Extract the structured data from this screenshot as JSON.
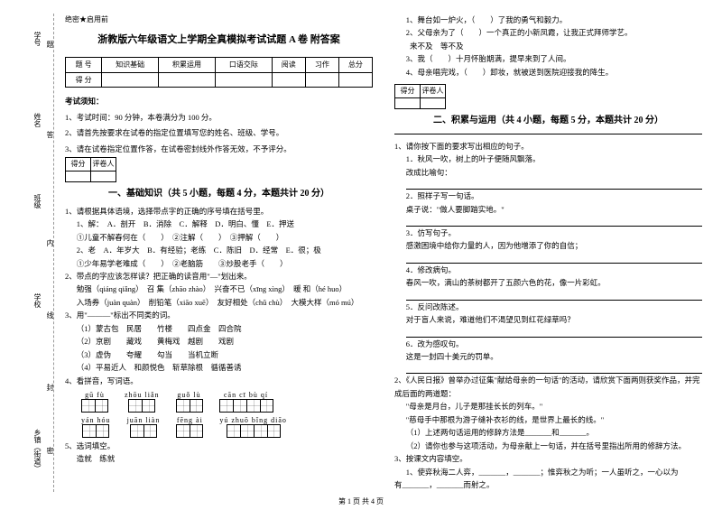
{
  "secret": "绝密★启用前",
  "title": "浙教版六年级语文上学期全真模拟考试试题 A 卷 附答案",
  "spine": {
    "l1": "学号",
    "l2": "姓名",
    "l3": "班级",
    "l4": "学校",
    "l5": "乡镇（街道）",
    "d1": "题",
    "d2": "答",
    "d3": "内",
    "d4": "线",
    "d5": "封",
    "d6": "密"
  },
  "score_header": [
    "题 号",
    "知识基础",
    "积累运用",
    "口语交际",
    "阅读",
    "习作",
    "总分"
  ],
  "score_row": "得 分",
  "notice_title": "考试须知：",
  "notice": [
    "1、考试时间：90 分钟，本卷满分为 100 分。",
    "2、请首先按要求在试卷的指定位置填写您的姓名、班级、学号。",
    "3、请在试卷指定位置作答，在试卷密封线外作答无效，不予评分。"
  ],
  "dp": {
    "a": "得分",
    "b": "评卷人"
  },
  "sec1": "一、基础知识（共 5 小题，每题 4 分，本题共计 20 分）",
  "q1": {
    "stem": "1、请根据具体语境，选择带点字的正确的序号填在括号里。",
    "l1": "1、解：　A．剖开　B．消除　C．解释　D．明白、懂　E．押送",
    "l2": "①儿童不解春何在（　　）　②注解（　　）　③押解（　　）",
    "l3": "2、老　A．年岁大　B．有经验；老练　C．陈旧　D．经常　E．很；极",
    "l4": "①少年易学老难成（　　）　②老脑筋　　③炒股老手（　　）"
  },
  "q2": {
    "stem": "2、带点的字应该怎样读？把正确的读音用\"—\"划出来。",
    "l1": "勉强（qiáng qiǎng）　召 集（zhāo zhào）　兴奋不已（xīng xìng）　暖 和（hé huo）",
    "l2": "入场券（juàn quàn）　削铅笔（xiāo xuē）　友好相处（chǔ chù）　大模大样（mó mú）"
  },
  "q3": {
    "stem": "3、用\"———\"标出不同类的词。",
    "l1": "（1）蒙古包　民居　　竹楼　　四点金　四合院",
    "l2": "（2）京剧　　藏戏　　黄梅戏　越剧　　戏剧",
    "l3": "（3）虚伪　　夸耀　　勾当　　当机立断",
    "l4": "（4）平易近人　和颜悦色　斩草除根　循循善诱"
  },
  "q4": {
    "stem": "4、看拼音，写词语。",
    "py_row1": [
      "gū fù",
      "zhōu liǎn",
      "guǒ lù",
      "cān cī bù qí"
    ],
    "py_row2": [
      "yán hóu",
      "juān liàn",
      "fēng ài",
      "yú zhuō bǐng diāo"
    ],
    "cells_row1": [
      2,
      2,
      2,
      4
    ],
    "cells_row2": [
      2,
      2,
      2,
      4
    ]
  },
  "q5": {
    "stem": "5、选词填空。",
    "l1": "造就　练就"
  },
  "rq": {
    "l1": "1、舞台如一炉火，（　　）了我的勇气和毅力。",
    "l2": "2、父母亲为了（　　）一个真正的小新凤霞，让我正式拜师学艺。",
    "l3": "　　来不及　等不及",
    "l4": "3、我（　　）十月怀胎期满，提早来到了人间。",
    "l5": "4、母亲唱完戏，（　　）卸妆，就被送到医院迎接我的降生。"
  },
  "sec2": "二、积累与运用（共 4 小题，每题 5 分，本题共计 20 分）",
  "s2q1": {
    "stem": "1、请你按下面的要求写出相应的句子。",
    "a": "1．秋风一吹，树上的叶子便随风飘落。",
    "a2": "改成比喻句：",
    "b": "2．照样子写一句话。",
    "b2": "桌子说：\"做人要脚踏实地。\"",
    "c": "3．仿写句子。",
    "c2": "感激困境中给你力量的人，因为他增添了你的自信；",
    "d": "4．修改病句。",
    "d2": "春风一吹，满山的茶树都开了五颜六色的花，像一片彩虹。",
    "e": "5．反问改陈述。",
    "e2": "对于盲人来说，难道他们不渴望见到红花绿草吗？",
    "f": "6．改为感叹句。",
    "f2": "这是一封四十美元的罚单。"
  },
  "s2q2": {
    "stem": "2、《人民日报》曾举办过征集\"献给母亲的一句话\"的活动，请欣赏下面两则获奖作品，并完成后面的两道题：",
    "l1": "\"母亲是月台，儿子是那挂长长的列车。\"",
    "l2": "\"慈母手中那根为游子缝补衣衫的线，是世界上最长的线。\"",
    "l3": "（1）上述两句话运用的修辞方法是_______和_______。",
    "l4": "（2）请你也参与这项活动，为母亲献上一句话，并在括号里指出所用的修辞方法。"
  },
  "s2q3": {
    "stem": "3、按课文内容填空。",
    "l1": "1、使弈秋海二人弈，_______，_______；惟弈秋之为听；一人虽听之，一心以为",
    "l2": "有_______，_______而射之。"
  },
  "footer": "第 1 页 共 4 页"
}
